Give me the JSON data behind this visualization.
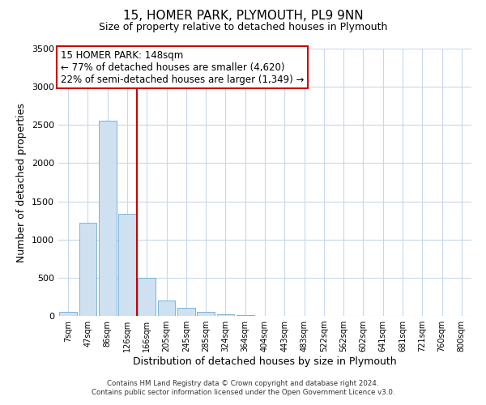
{
  "title": "15, HOMER PARK, PLYMOUTH, PL9 9NN",
  "subtitle": "Size of property relative to detached houses in Plymouth",
  "xlabel": "Distribution of detached houses by size in Plymouth",
  "ylabel": "Number of detached properties",
  "bar_labels": [
    "7sqm",
    "47sqm",
    "86sqm",
    "126sqm",
    "166sqm",
    "205sqm",
    "245sqm",
    "285sqm",
    "324sqm",
    "364sqm",
    "404sqm",
    "443sqm",
    "483sqm",
    "522sqm",
    "562sqm",
    "602sqm",
    "641sqm",
    "681sqm",
    "721sqm",
    "760sqm",
    "800sqm"
  ],
  "bar_values": [
    50,
    1220,
    2560,
    1340,
    500,
    200,
    110,
    50,
    20,
    10,
    5,
    0,
    5,
    0,
    0,
    0,
    0,
    0,
    0,
    0,
    0
  ],
  "bar_color": "#cfe0f0",
  "bar_edge_color": "#6aaad4",
  "vline_color": "#cc0000",
  "ylim": [
    0,
    3500
  ],
  "yticks": [
    0,
    500,
    1000,
    1500,
    2000,
    2500,
    3000,
    3500
  ],
  "annotation_title": "15 HOMER PARK: 148sqm",
  "annotation_line1": "← 77% of detached houses are smaller (4,620)",
  "annotation_line2": "22% of semi-detached houses are larger (1,349) →",
  "annotation_box_color": "#ffffff",
  "annotation_box_edge": "#cc0000",
  "footer1": "Contains HM Land Registry data © Crown copyright and database right 2024.",
  "footer2": "Contains public sector information licensed under the Open Government Licence v3.0.",
  "background_color": "#ffffff",
  "grid_color": "#c8d8ea"
}
